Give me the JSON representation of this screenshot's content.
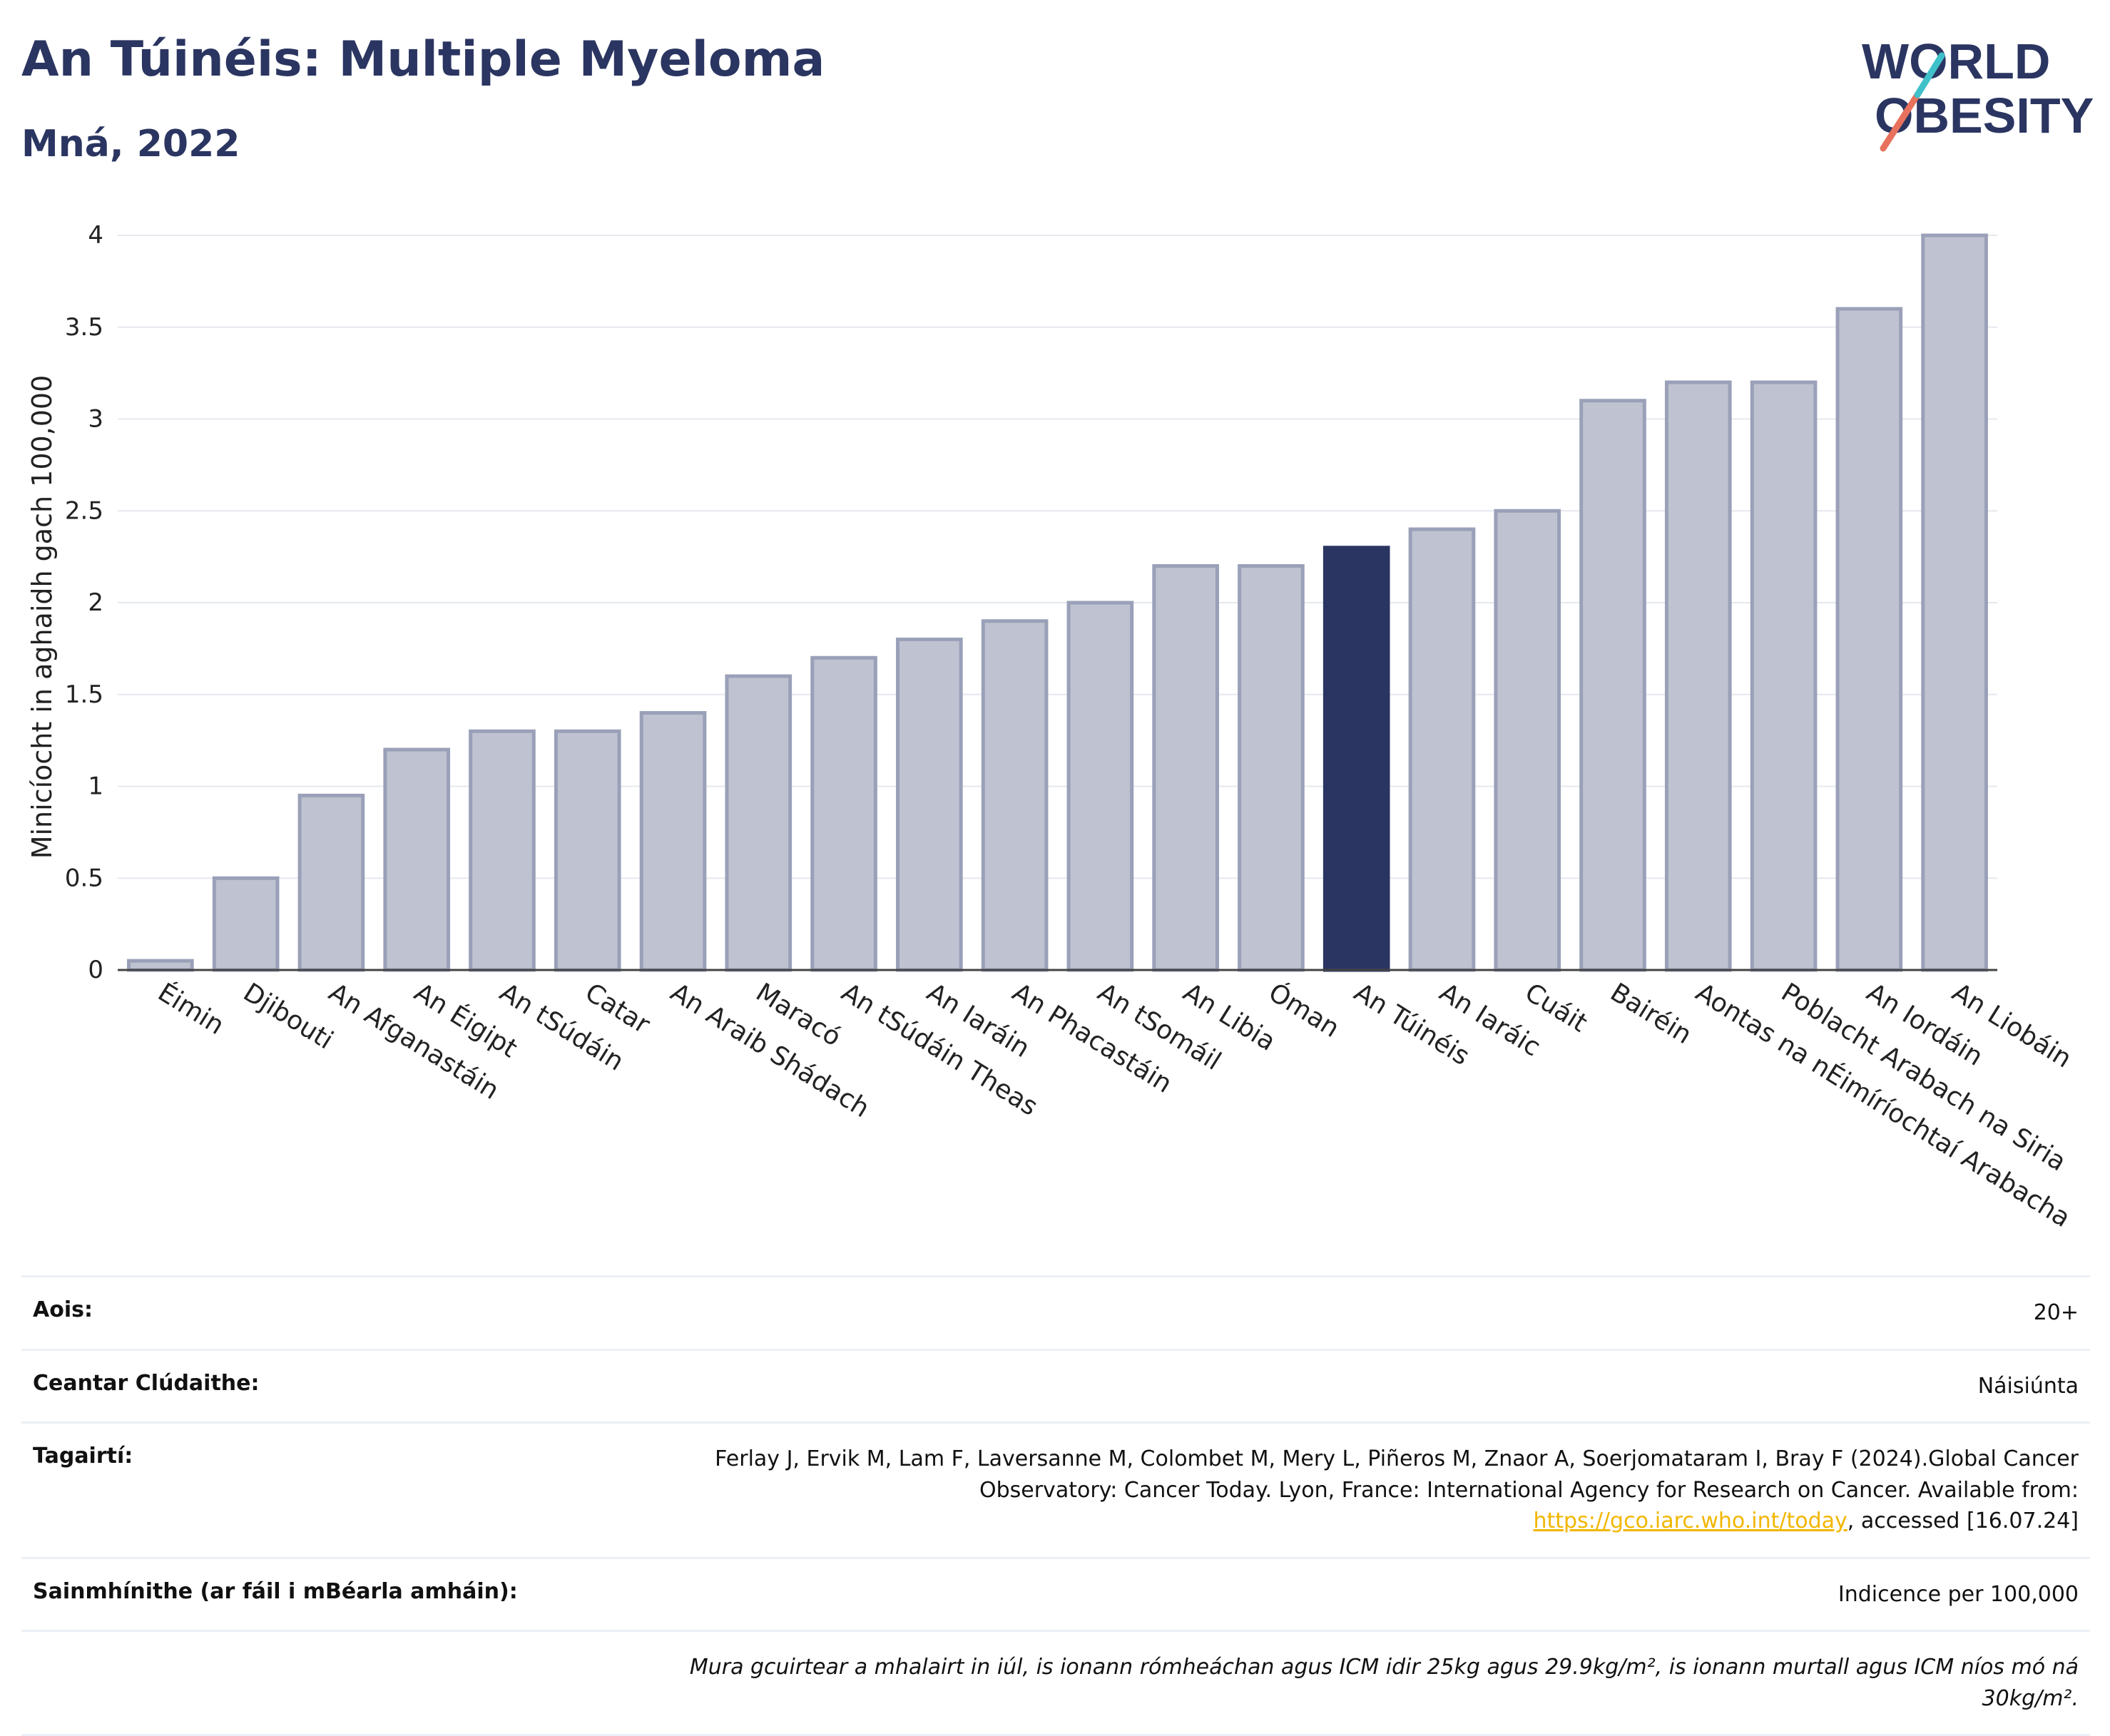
{
  "header": {
    "title": "An Túinéis: Multiple Myeloma",
    "subtitle": "Mná, 2022"
  },
  "logo": {
    "line1": "WORLD",
    "line2": "OBESITY",
    "text_color": "#2b3561",
    "slash_colors": [
      "#e8715d",
      "#3fc1c9"
    ]
  },
  "chart_data": {
    "type": "bar",
    "categories": [
      "Éimin",
      "Djibouti",
      "An Afganastáin",
      "An Éigipt",
      "An tSúdáin",
      "Catar",
      "An Araib Shádach",
      "Maracó",
      "An tSúdáin Theas",
      "An Iaráin",
      "An Phacastáin",
      "An tSomáil",
      "An Libia",
      "Óman",
      "An Túinéis",
      "An Iaráic",
      "Cuáit",
      "Bairéin",
      "Aontas na nÉimíríochtaí Arabacha",
      "Poblacht Arabach na Siria",
      "An Iordáin",
      "An Liobáin"
    ],
    "values": [
      0.05,
      0.5,
      0.95,
      1.2,
      1.3,
      1.3,
      1.4,
      1.6,
      1.7,
      1.8,
      1.9,
      2.0,
      2.2,
      2.2,
      2.3,
      2.4,
      2.5,
      3.1,
      3.2,
      3.2,
      3.6,
      4.0
    ],
    "highlight": "An Túinéis",
    "ylabel": "Minicíocht in aghaidh gach 100,000",
    "xlabel": "",
    "ylim": [
      0,
      4
    ],
    "yticks": [
      0,
      0.5,
      1,
      1.5,
      2,
      2.5,
      3,
      3.5,
      4
    ],
    "ytick_labels": [
      "0",
      "0.5",
      "1",
      "1.5",
      "2",
      "2.5",
      "3",
      "3.5",
      "4"
    ],
    "grid": true,
    "colors": {
      "bar": "#bfc2d0",
      "bar_edge": "#9aa0b8",
      "highlight": "#2b3561"
    }
  },
  "info": {
    "age_label": "Aois:",
    "age_value": "20+",
    "area_label": "Ceantar Clúdaithe:",
    "area_value": "Náisiúnta",
    "ref_label": "Tagairtí:",
    "ref_text_1": "Ferlay J, Ervik M, Lam F, Laversanne M, Colombet M, Mery L, Piñeros M, Znaor A, Soerjomataram I, Bray F (2024).Global Cancer Observatory: Cancer Today. Lyon, France: International Agency for Research on Cancer. Available from: ",
    "ref_link": "https://gco.iarc.who.int/today",
    "ref_text_2": ", accessed [16.07.24]",
    "def_label": "Sainmhínithe (ar fáil i mBéarla amháin):",
    "def_value": "Indicence per 100,000",
    "note": "Mura gcuirtear a mhalairt in iúl, is ionann rómheáchan agus ICM idir 25kg agus 29.9kg/m², is ionann murtall agus ICM níos mó ná 30kg/m²."
  }
}
